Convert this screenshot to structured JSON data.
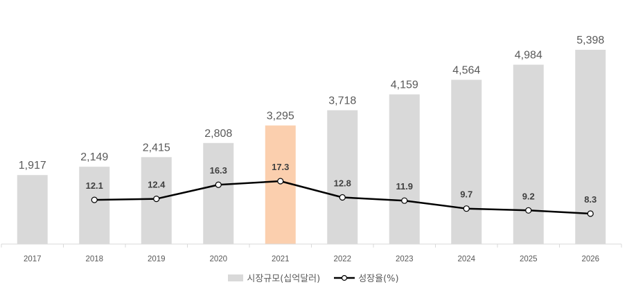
{
  "chart_data": {
    "type": "bar",
    "title": "",
    "xlabel": "",
    "ylabel": "",
    "categories": [
      "2017",
      "2018",
      "2019",
      "2020",
      "2021",
      "2022",
      "2023",
      "2024",
      "2025",
      "2026"
    ],
    "series": [
      {
        "name": "시장규모(십억달러)",
        "type": "bar",
        "values": [
          1917,
          2149,
          2415,
          2808,
          3295,
          3718,
          4159,
          4564,
          4984,
          5398
        ],
        "value_labels": [
          "1,917",
          "2,149",
          "2,415",
          "2,808",
          "3,295",
          "3,718",
          "4,159",
          "4,564",
          "4,984",
          "5,398"
        ],
        "color": "#d9d9d9",
        "highlight_index": 4,
        "highlight_color": "#fbcfae"
      },
      {
        "name": "성장율(%)",
        "type": "line",
        "values": [
          null,
          12.1,
          12.4,
          16.3,
          17.3,
          12.8,
          11.9,
          9.7,
          9.2,
          8.3
        ],
        "color": "#000000",
        "marker": "hollow-circle"
      }
    ],
    "ylim": [
      0,
      5398
    ],
    "grid": false,
    "legend_position": "bottom"
  },
  "legend": {
    "bar_label": "시장규모(십억달러)",
    "line_label": "성장율(%)"
  }
}
